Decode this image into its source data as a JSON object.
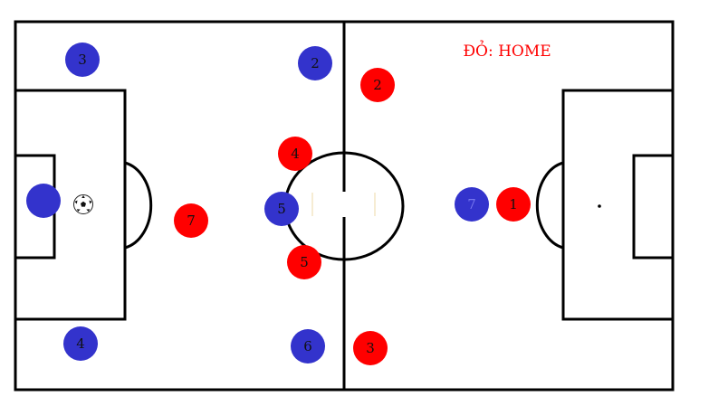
{
  "team_label": {
    "text": "ĐỎ: HOME",
    "color": "#ff0000"
  },
  "team_colors": {
    "red": "#ff0000",
    "blue": "#3333cc"
  },
  "players": [
    {
      "team": "blue",
      "number": "3"
    },
    {
      "team": "blue",
      "number": "2"
    },
    {
      "team": "red",
      "number": "2"
    },
    {
      "team": "red",
      "number": "4"
    },
    {
      "team": "blue",
      "number": ""
    },
    {
      "team": "blue",
      "number": "5"
    },
    {
      "team": "red",
      "number": "7"
    },
    {
      "team": "blue",
      "number": "7"
    },
    {
      "team": "red",
      "number": "1"
    },
    {
      "team": "red",
      "number": "5"
    },
    {
      "team": "blue",
      "number": "4"
    },
    {
      "team": "blue",
      "number": "6"
    },
    {
      "team": "red",
      "number": "3"
    }
  ],
  "ball_icon": "soccer-ball-icon"
}
